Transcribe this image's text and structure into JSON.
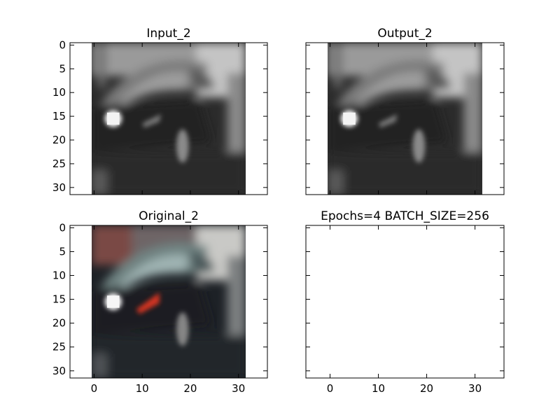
{
  "chart_data": [
    {
      "type": "image",
      "title": "Input_2",
      "content": "grayscale car image",
      "xlim": [
        -5,
        36
      ],
      "ylim": [
        31.5,
        -0.5
      ],
      "yticks": [
        0,
        5,
        10,
        15,
        20,
        25,
        30
      ],
      "ytick_labels": [
        "0",
        "5",
        "10",
        "15",
        "20",
        "25",
        "30"
      ],
      "xticks": [
        0,
        10,
        20,
        30
      ],
      "xtick_labels_visible": false,
      "image_extent": [
        -0.5,
        31.5
      ]
    },
    {
      "type": "image",
      "title": "Output_2",
      "content": "grayscale car image",
      "xlim": [
        -5,
        36
      ],
      "ylim": [
        31.5,
        -0.5
      ],
      "yticks": [
        0,
        5,
        10,
        15,
        20,
        25,
        30
      ],
      "ytick_labels_visible": false,
      "xticks": [
        0,
        10,
        20,
        30
      ],
      "xtick_labels_visible": false,
      "image_extent": [
        -0.5,
        31.5
      ]
    },
    {
      "type": "image",
      "title": "Original_2",
      "content": "color car image",
      "xlim": [
        -5,
        36
      ],
      "ylim": [
        31.5,
        -0.5
      ],
      "yticks": [
        0,
        5,
        10,
        15,
        20,
        25,
        30
      ],
      "ytick_labels": [
        "0",
        "5",
        "10",
        "15",
        "20",
        "25",
        "30"
      ],
      "xticks": [
        0,
        10,
        20,
        30
      ],
      "xtick_labels": [
        "0",
        "10",
        "20",
        "30"
      ],
      "image_extent": [
        -0.5,
        31.5
      ]
    },
    {
      "type": "empty",
      "title": "Epochs=4 BATCH_SIZE=256",
      "xlim": [
        -5,
        36
      ],
      "ylim": [
        31.5,
        -0.5
      ],
      "yticks": [
        0,
        5,
        10,
        15,
        20,
        25,
        30
      ],
      "ytick_labels_visible": false,
      "xticks": [
        0,
        10,
        20,
        30
      ],
      "xtick_labels": [
        "0",
        "10",
        "20",
        "30"
      ]
    }
  ]
}
